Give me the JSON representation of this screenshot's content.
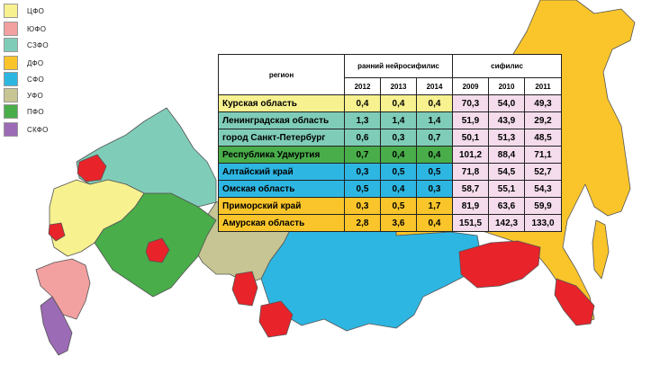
{
  "legend": [
    {
      "label": "ЦФО",
      "color": "#f7f18f"
    },
    {
      "label": "ЮФО",
      "color": "#f2a0a0"
    },
    {
      "label": "СЗФО",
      "color": "#7fcdb8"
    },
    {
      "label": "ДФО",
      "color": "#f9c52a"
    },
    {
      "label": "СФО",
      "color": "#2eb6e2"
    },
    {
      "label": "УФО",
      "color": "#c6c593"
    },
    {
      "label": "ПФО",
      "color": "#49ad4a"
    },
    {
      "label": "СКФО",
      "color": "#9b6bb5"
    }
  ],
  "highlight_color": "#e8232a",
  "table": {
    "col_region": "регион",
    "group_neuro": "ранний нейросифилис",
    "group_syph": "сифилис",
    "years_neuro": [
      "2012",
      "2013",
      "2014"
    ],
    "years_syph": [
      "2009",
      "2010",
      "2011"
    ],
    "rows": [
      {
        "region": "Курская область",
        "color": "#f7f18f",
        "neuro": [
          "0,4",
          "0,4",
          "0,4"
        ],
        "syph": [
          "70,3",
          "54,0",
          "49,3"
        ]
      },
      {
        "region": "Ленинградская область",
        "color": "#7fcdb8",
        "neuro": [
          "1,3",
          "1,4",
          "1,4"
        ],
        "syph": [
          "51,9",
          "43,9",
          "29,2"
        ]
      },
      {
        "region": "город Санкт-Петербург",
        "color": "#7fcdb8",
        "neuro": [
          "0,6",
          "0,3",
          "0,7"
        ],
        "syph": [
          "50,1",
          "51,3",
          "48,5"
        ]
      },
      {
        "region": "Республика Удмуртия",
        "color": "#49ad4a",
        "neuro": [
          "0,7",
          "0,4",
          "0,4"
        ],
        "syph": [
          "101,2",
          "88,4",
          "71,1"
        ]
      },
      {
        "region": "Алтайский край",
        "color": "#2eb6e2",
        "neuro": [
          "0,3",
          "0,5",
          "0,5"
        ],
        "syph": [
          "71,8",
          "54,5",
          "52,7"
        ]
      },
      {
        "region": "Омская область",
        "color": "#2eb6e2",
        "neuro": [
          "0,5",
          "0,4",
          "0,3"
        ],
        "syph": [
          "58,7",
          "55,1",
          "54,3"
        ]
      },
      {
        "region": "Приморский край",
        "color": "#f9c52a",
        "neuro": [
          "0,3",
          "0,5",
          "1,7"
        ],
        "syph": [
          "81,9",
          "63,6",
          "59,9"
        ]
      },
      {
        "region": "Амурская область",
        "color": "#f9c52a",
        "neuro": [
          "2,8",
          "3,6",
          "0,4"
        ],
        "syph": [
          "151,5",
          "142,3",
          "133,0"
        ]
      }
    ]
  }
}
